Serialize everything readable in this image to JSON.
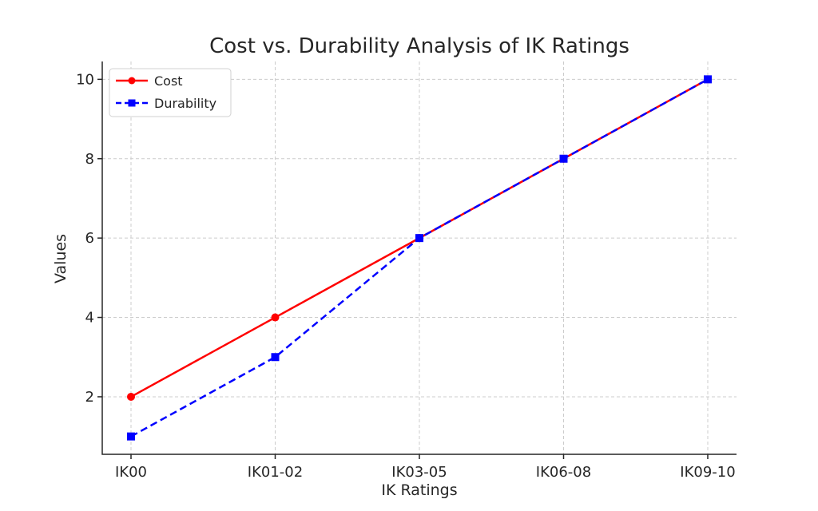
{
  "chart_data": {
    "type": "line",
    "title": "Cost vs. Durability Analysis of IK Ratings",
    "xlabel": "IK Ratings",
    "ylabel": "Values",
    "categories": [
      "IK00",
      "IK01-02",
      "IK03-05",
      "IK06-08",
      "IK09-10"
    ],
    "yticks": [
      2,
      4,
      6,
      8,
      10
    ],
    "ylim": [
      0.55,
      10.45
    ],
    "grid": true,
    "legend_position": "upper-left",
    "series": [
      {
        "name": "Cost",
        "values": [
          2,
          4,
          6,
          8,
          10
        ],
        "color": "#ff0000",
        "marker": "circle",
        "linestyle": "solid"
      },
      {
        "name": "Durability",
        "values": [
          1,
          3,
          6,
          8,
          10
        ],
        "color": "#0000ff",
        "marker": "square",
        "linestyle": "dashed"
      }
    ]
  }
}
